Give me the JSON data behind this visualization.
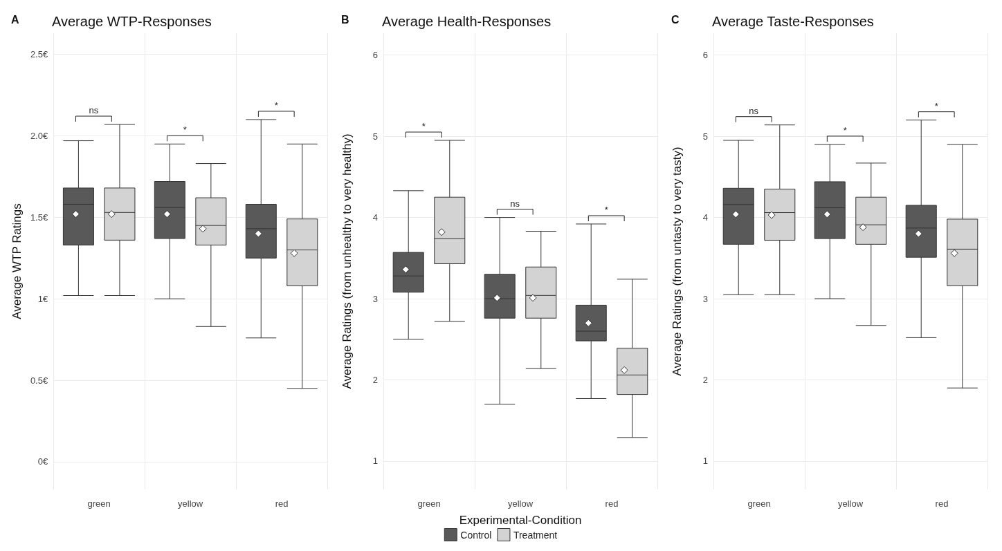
{
  "chart_data": [
    {
      "type": "box",
      "title": "Average WTP-Responses",
      "ylabel": "Average WTP Ratings",
      "categories": [
        "green",
        "yellow",
        "red"
      ],
      "ylim": [
        -0.17,
        2.63
      ],
      "yticks": [
        {
          "value": 0,
          "label": "0€"
        },
        {
          "value": 0.5,
          "label": "0.5€"
        },
        {
          "value": 1,
          "label": "1€"
        },
        {
          "value": 1.5,
          "label": "1.5€"
        },
        {
          "value": 2,
          "label": "2.0€"
        },
        {
          "value": 2.5,
          "label": "2.5€"
        }
      ],
      "grid": true,
      "legend": false,
      "series": [
        {
          "color": "#595959",
          "boxes": [
            {
              "low": 1.02,
              "q1": 1.33,
              "median": 1.58,
              "q3": 1.68,
              "high": 1.97,
              "mean": 1.52
            },
            {
              "low": 1.0,
              "q1": 1.37,
              "median": 1.56,
              "q3": 1.72,
              "high": 1.95,
              "mean": 1.52
            },
            {
              "low": 0.76,
              "q1": 1.25,
              "median": 1.43,
              "q3": 1.58,
              "high": 2.1,
              "mean": 1.4
            }
          ]
        },
        {
          "color": "#d3d3d3",
          "boxes": [
            {
              "low": 1.02,
              "q1": 1.36,
              "median": 1.53,
              "q3": 1.68,
              "high": 2.07,
              "mean": 1.52
            },
            {
              "low": 0.83,
              "q1": 1.33,
              "median": 1.45,
              "q3": 1.62,
              "high": 1.83,
              "mean": 1.43
            },
            {
              "low": 0.45,
              "q1": 1.08,
              "median": 1.3,
              "q3": 1.49,
              "high": 1.95,
              "mean": 1.28
            }
          ]
        }
      ],
      "annotations": [
        "A",
        "ns",
        "*",
        "*"
      ]
    },
    {
      "type": "box",
      "title": "Average Health-Responses",
      "xlabel": "Experimental-Condition",
      "ylabel": "Average Ratings (from unhealthy to very healthy)",
      "categories": [
        "green",
        "yellow",
        "red"
      ],
      "ylim": [
        0.65,
        6.27
      ],
      "yticks": [
        1,
        2,
        3,
        4,
        5,
        6
      ],
      "grid": true,
      "legend": "bottom",
      "series": [
        {
          "name": "Control",
          "color": "#595959",
          "boxes": [
            {
              "low": 2.5,
              "q1": 3.08,
              "median": 3.28,
              "q3": 3.57,
              "high": 4.33,
              "mean": 3.36
            },
            {
              "low": 1.7,
              "q1": 2.76,
              "median": 3.0,
              "q3": 3.3,
              "high": 4.0,
              "mean": 3.01
            },
            {
              "low": 1.77,
              "q1": 2.48,
              "median": 2.6,
              "q3": 2.92,
              "high": 3.92,
              "mean": 2.7
            }
          ]
        },
        {
          "name": "Treatment",
          "color": "#d3d3d3",
          "boxes": [
            {
              "low": 2.72,
              "q1": 3.43,
              "median": 3.74,
              "q3": 4.25,
              "high": 4.95,
              "mean": 3.82
            },
            {
              "low": 2.14,
              "q1": 2.76,
              "median": 3.04,
              "q3": 3.39,
              "high": 3.83,
              "mean": 3.01
            },
            {
              "low": 1.29,
              "q1": 1.82,
              "median": 2.06,
              "q3": 2.39,
              "high": 3.24,
              "mean": 2.12
            }
          ]
        }
      ],
      "annotations": [
        "B",
        "*",
        "ns",
        "*"
      ]
    },
    {
      "type": "box",
      "title": "Average Taste-Responses",
      "ylabel": "Average Ratings (from untasty to very tasty)",
      "categories": [
        "green",
        "yellow",
        "red"
      ],
      "ylim": [
        0.65,
        6.27
      ],
      "yticks": [
        1,
        2,
        3,
        4,
        5,
        6
      ],
      "grid": true,
      "legend": false,
      "series": [
        {
          "color": "#595959",
          "boxes": [
            {
              "low": 3.05,
              "q1": 3.67,
              "median": 4.16,
              "q3": 4.36,
              "high": 4.95,
              "mean": 4.04
            },
            {
              "low": 3.0,
              "q1": 3.74,
              "median": 4.12,
              "q3": 4.44,
              "high": 4.9,
              "mean": 4.04
            },
            {
              "low": 2.52,
              "q1": 3.51,
              "median": 3.87,
              "q3": 4.15,
              "high": 5.2,
              "mean": 3.8
            }
          ]
        },
        {
          "color": "#d3d3d3",
          "boxes": [
            {
              "low": 3.05,
              "q1": 3.72,
              "median": 4.06,
              "q3": 4.35,
              "high": 5.14,
              "mean": 4.03
            },
            {
              "low": 2.67,
              "q1": 3.67,
              "median": 3.91,
              "q3": 4.25,
              "high": 4.67,
              "mean": 3.88
            },
            {
              "low": 1.9,
              "q1": 3.16,
              "median": 3.61,
              "q3": 3.98,
              "high": 4.9,
              "mean": 3.56
            }
          ]
        }
      ],
      "annotations": [
        "C",
        "ns",
        "*",
        "*"
      ]
    }
  ]
}
